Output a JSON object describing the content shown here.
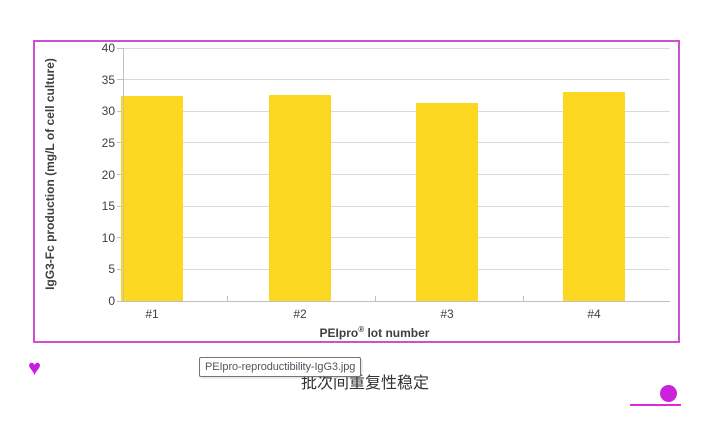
{
  "chart_data": {
    "type": "bar",
    "categories": [
      "#1",
      "#2",
      "#3",
      "#4"
    ],
    "values": [
      32.4,
      32.6,
      31.3,
      33.0
    ],
    "title": "",
    "xlabel": "PEIpro® lot number",
    "xlabel_parts": {
      "text": "PEIpro",
      "sup": "®",
      "rest": " lot number"
    },
    "ylabel": "IgG3-Fc production (mg/L of cell culture)",
    "ylim": [
      0,
      40
    ],
    "ytick_step": 5,
    "grid": true,
    "legend_position": "none",
    "bar_color": "#FDD821",
    "gridline_color": "#D9D9D9",
    "axis_line_color": "#BFBFBF",
    "label_color": "#3F3F3F"
  },
  "frame": {
    "border_color": "#CE4ED4"
  },
  "tooltip": {
    "text": "PEIpro-reproductibility-IgG3.jpg"
  },
  "caption": {
    "full_text": "批次间重复性稳定",
    "visible_tail": "稳定"
  },
  "decorations": {
    "heart_icon": "♥",
    "heart_color": "#C71FE0",
    "dot_color": "#CB23DB",
    "underline_color": "#D92BD9"
  }
}
